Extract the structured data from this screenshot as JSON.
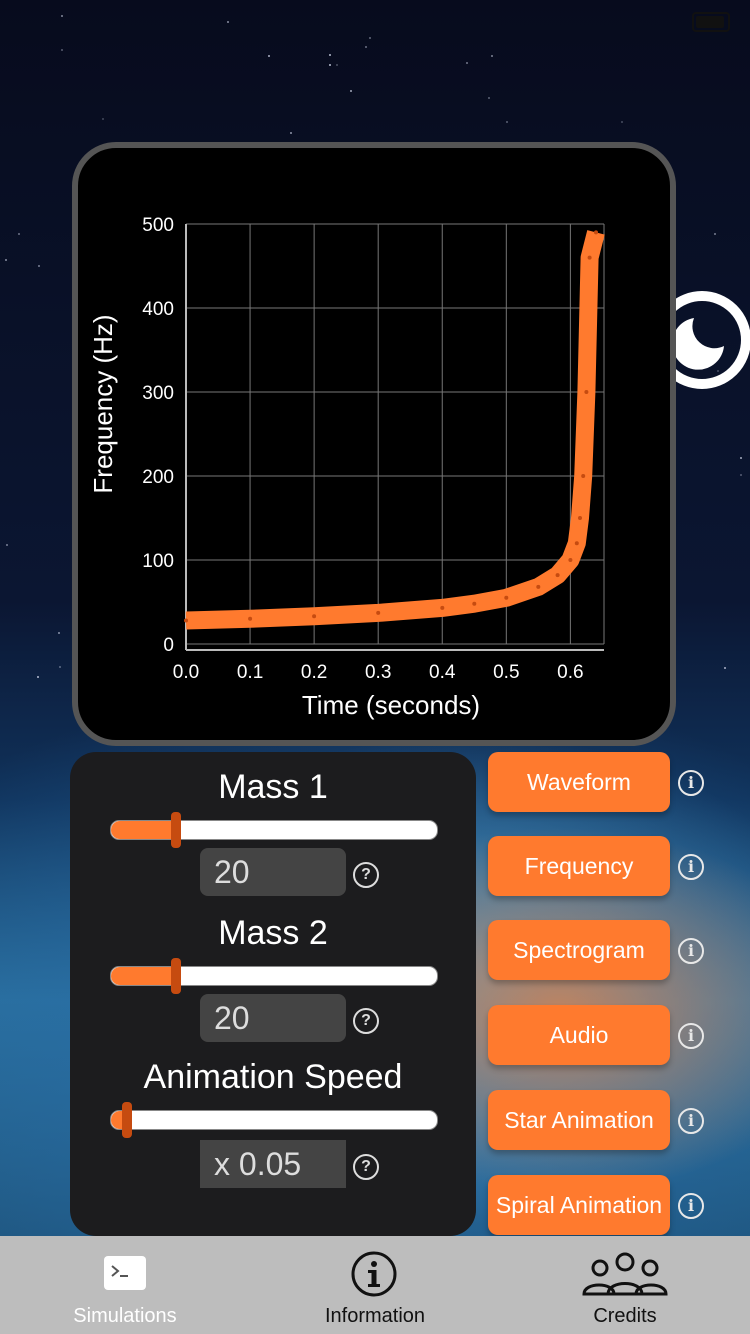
{
  "chart_data": {
    "type": "line",
    "xlabel": "Time (seconds)",
    "ylabel": "Frequency (Hz)",
    "xlim": [
      0.0,
      0.64
    ],
    "ylim": [
      0,
      500
    ],
    "xticks": [
      "0.0",
      "0.1",
      "0.2",
      "0.3",
      "0.4",
      "0.5",
      "0.6"
    ],
    "yticks": [
      "0",
      "100",
      "200",
      "300",
      "400",
      "500"
    ],
    "series": [
      {
        "color": "#ff7a2e",
        "x": [
          0.0,
          0.1,
          0.2,
          0.3,
          0.4,
          0.45,
          0.5,
          0.55,
          0.58,
          0.6,
          0.61,
          0.615,
          0.62,
          0.625,
          0.63,
          0.64
        ],
        "y": [
          28,
          30,
          33,
          37,
          43,
          48,
          55,
          68,
          82,
          100,
          120,
          150,
          200,
          300,
          460,
          490
        ]
      }
    ],
    "grid": true
  },
  "controls": {
    "mass1": {
      "label": "Mass 1",
      "value": "20",
      "fraction": 0.2
    },
    "mass2": {
      "label": "Mass 2",
      "value": "20",
      "fraction": 0.2
    },
    "speed": {
      "label": "Animation Speed",
      "value": "x 0.05",
      "fraction": 0.05
    }
  },
  "buttons": [
    {
      "label": "Waveform"
    },
    {
      "label": "Frequency"
    },
    {
      "label": "Spectrogram"
    },
    {
      "label": "Audio"
    },
    {
      "label": "Star Animation"
    },
    {
      "label": "Spiral Animation"
    }
  ],
  "tabs": [
    {
      "label": "Simulations",
      "icon": "terminal-icon",
      "selected": true
    },
    {
      "label": "Information",
      "icon": "info-circle-icon",
      "selected": false
    },
    {
      "label": "Credits",
      "icon": "people-group-icon",
      "selected": false
    }
  ],
  "colors": {
    "accent": "#ff7a2e",
    "thumb": "#c64b10",
    "panel": "#1c1c1e",
    "tabbar": "#bdbdbd"
  }
}
